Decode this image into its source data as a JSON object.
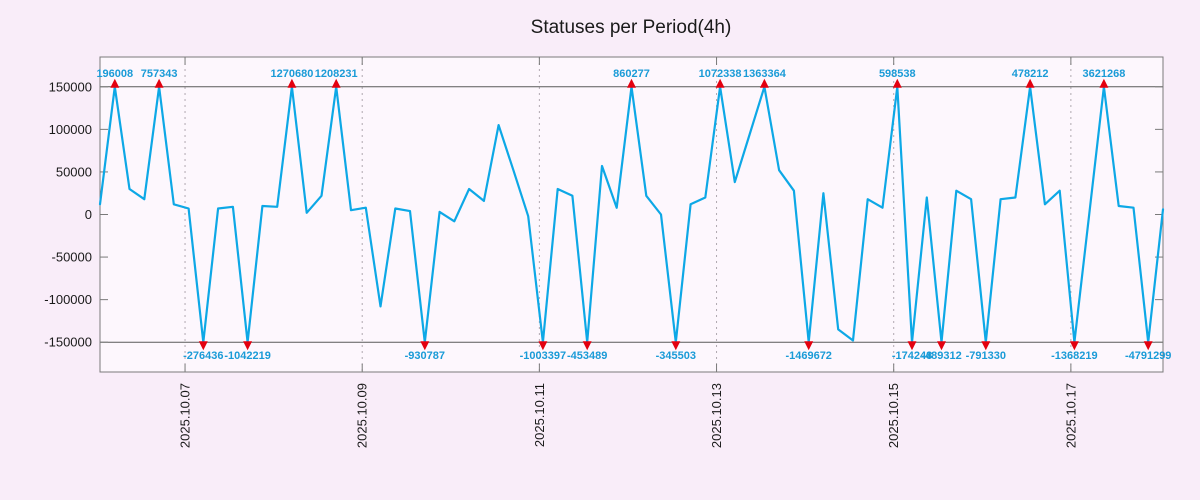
{
  "title": "Statuses per Period(4h)",
  "chart_data": {
    "type": "line",
    "title": "Statuses per Period(4h)",
    "period": "4h",
    "legend": null,
    "grid": "vertical-dotted-at-x-ticks",
    "x_tick_labels": [
      "2025.10.07",
      "2025.10.09",
      "2025.10.11",
      "2025.10.13",
      "2025.10.15",
      "2025.10.17"
    ],
    "x_tick_positions": [
      5.76,
      17.76,
      29.76,
      41.76,
      53.76,
      65.76
    ],
    "y_ticks": [
      150000,
      100000,
      50000,
      0,
      -50000,
      -100000,
      -150000
    ],
    "y_axis_range": [
      -185000,
      185000
    ],
    "clip_value": 150000,
    "values": [
      12000,
      196008,
      30000,
      18000,
      757343,
      12000,
      7000,
      -276436,
      7000,
      9000,
      -1042219,
      10000,
      9000,
      1270680,
      2000,
      22000,
      1208231,
      5000,
      8000,
      -108000,
      7000,
      4000,
      -930787,
      3000,
      -8000,
      30000,
      16000,
      105000,
      52000,
      -2000,
      -1003397,
      30000,
      22000,
      -453489,
      57000,
      8000,
      860277,
      22000,
      0,
      -345503,
      12000,
      20000,
      1072338,
      38000,
      94000,
      1363364,
      52000,
      28000,
      -1469672,
      25000,
      -135000,
      -148000,
      18000,
      8000,
      598538,
      -174248,
      20000,
      -489312,
      28000,
      18000,
      -791330,
      18000,
      20000,
      478212,
      12000,
      28000,
      -1368219,
      0,
      3621268,
      10000,
      8000,
      -4791299,
      6000
    ],
    "peak_labels": [
      "196008",
      "757343",
      "1270680",
      "1208231",
      "860277",
      "1072338",
      "1363364",
      "598538",
      "478212",
      "3621268"
    ],
    "trough_labels": [
      "-276436",
      "-1042219",
      "-930787",
      "-1003397",
      "-453489",
      "-345503",
      "-1469672",
      "-174248",
      "-489312",
      "-791330",
      "-1368219",
      "-4791299"
    ],
    "colors": {
      "line": "#0da8e6",
      "marker": "#e3000f",
      "value_label": "#1a9bd7",
      "background": "#f9edf9",
      "plot_background": "#fdf7fd",
      "frame": "#7a7a7a",
      "grid": "#b0a8b0",
      "clip_line": "#5a5a5a",
      "text": "#1a1a1a"
    }
  }
}
